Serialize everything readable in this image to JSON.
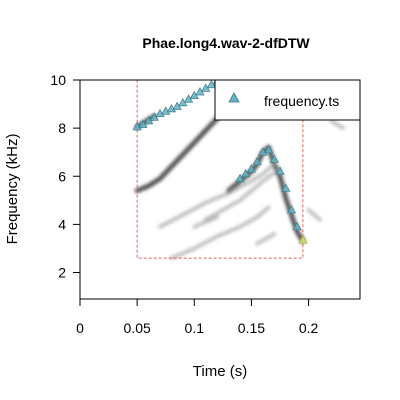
{
  "chart_data": {
    "type": "scatter",
    "title": "Phae.long4.wav-2-dfDTW",
    "xlabel": "Time (s)",
    "ylabel": "Frequency (kHz)",
    "xlim": [
      0,
      0.245
    ],
    "ylim": [
      0.9,
      10
    ],
    "x_ticks": [
      0,
      0.05,
      0.1,
      0.15,
      0.2
    ],
    "x_tick_labels": [
      "0",
      "0.05",
      "0.1",
      "0.15",
      "0.2"
    ],
    "y_ticks": [
      2,
      4,
      6,
      8,
      10
    ],
    "y_tick_labels": [
      "2",
      "4",
      "6",
      "8",
      "10"
    ],
    "legend": {
      "placement": "top-right",
      "entries": [
        "frequency.ts"
      ]
    },
    "selection_box": {
      "x": [
        0.05,
        0.195
      ],
      "y": [
        2.6,
        10
      ]
    },
    "series": [
      {
        "name": "frequency.ts",
        "color": "#66b2c2",
        "end_color": "#d4e86a",
        "x": [
          0.05,
          0.055,
          0.06,
          0.065,
          0.07,
          0.075,
          0.08,
          0.085,
          0.09,
          0.095,
          0.1,
          0.105,
          0.11,
          0.115,
          0.12,
          0.125,
          0.13,
          0.135,
          0.14,
          0.145,
          0.15,
          0.155,
          0.16,
          0.165,
          0.17,
          0.175,
          0.18,
          0.185,
          0.19,
          0.195
        ],
        "y": [
          8.05,
          8.15,
          8.3,
          8.45,
          8.6,
          8.7,
          8.8,
          8.9,
          9.05,
          9.2,
          9.35,
          9.5,
          9.65,
          9.8,
          9.95,
          10.1,
          10.2,
          10.3,
          5.9,
          6.1,
          6.3,
          6.6,
          7.0,
          7.1,
          6.7,
          6.2,
          5.5,
          4.6,
          3.9,
          3.35
        ]
      }
    ],
    "spectrogram_traces": [
      {
        "x": [
          0.05,
          0.06,
          0.07,
          0.08,
          0.09,
          0.1,
          0.11,
          0.12
        ],
        "y": [
          5.4,
          5.6,
          5.9,
          6.4,
          6.9,
          7.4,
          7.9,
          8.4
        ]
      },
      {
        "x": [
          0.05,
          0.055,
          0.06,
          0.065
        ],
        "y": [
          8.05,
          8.2,
          8.35,
          8.5
        ]
      },
      {
        "x": [
          0.13,
          0.14,
          0.15,
          0.155,
          0.16,
          0.165,
          0.17,
          0.175,
          0.18,
          0.185,
          0.19,
          0.195
        ],
        "y": [
          5.4,
          5.8,
          6.2,
          6.5,
          7.0,
          7.2,
          6.5,
          6.0,
          5.1,
          4.4,
          3.7,
          3.3
        ]
      },
      {
        "x": [
          0.07,
          0.09,
          0.11,
          0.13,
          0.15,
          0.16,
          0.17
        ],
        "y": [
          3.9,
          4.4,
          4.9,
          5.3,
          5.8,
          6.1,
          6.5
        ]
      },
      {
        "x": [
          0.08,
          0.1,
          0.12,
          0.14,
          0.155,
          0.165
        ],
        "y": [
          2.6,
          3.0,
          3.5,
          3.9,
          4.3,
          4.7
        ]
      },
      {
        "x": [
          0.11,
          0.14,
          0.16,
          0.175
        ],
        "y": [
          4.2,
          5.0,
          5.8,
          6.3
        ]
      },
      {
        "x": [
          0.1,
          0.12
        ],
        "y": [
          3.9,
          4.3
        ]
      },
      {
        "x": [
          0.155,
          0.17
        ],
        "y": [
          3.2,
          3.6
        ]
      },
      {
        "x": [
          0.22,
          0.23
        ],
        "y": [
          8.3,
          8.0
        ]
      },
      {
        "x": [
          0.2,
          0.21
        ],
        "y": [
          4.6,
          4.2
        ]
      }
    ]
  }
}
